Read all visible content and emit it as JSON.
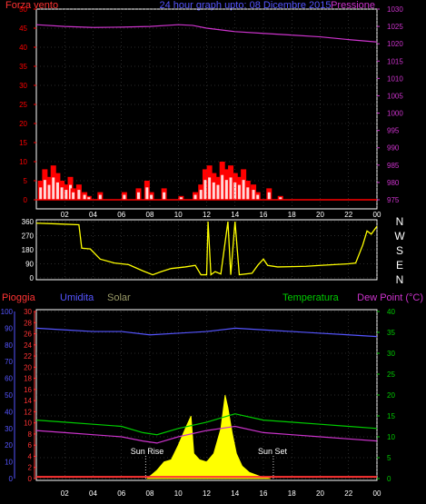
{
  "header": {
    "left_title": "Forza vento",
    "center_title": "24 hour graph upto: 08 Dicembre 2015",
    "right_title": "Pressione"
  },
  "bottom_header": {
    "rain": "Pioggia",
    "humidity": "Umidita",
    "solar": "Solar",
    "temperature": "Temperatura",
    "dewpoint": "Dew Point (°C)"
  },
  "direction_labels": [
    "N",
    "W",
    "S",
    "E",
    "N"
  ],
  "colors": {
    "wind": "#ff0000",
    "wind_gust": "#ffffff",
    "wind_avg": "#00ff00",
    "pressure": "#cc33cc",
    "direction": "#ffff00",
    "rain": "#ff3333",
    "humidity": "#5555ff",
    "solar": "#ffff00",
    "temperature": "#00cc00",
    "dewpoint": "#cc33cc",
    "frame": "#ffffff",
    "grid": "#555555"
  },
  "chart_data": [
    {
      "type": "bar",
      "title": "24 hour graph upto: 08 Dicembre 2015",
      "x_ticks": [
        "02",
        "04",
        "06",
        "08",
        "10",
        "12",
        "14",
        "16",
        "18",
        "20",
        "22",
        "00"
      ],
      "xlim_hours": [
        0,
        24
      ],
      "left_axis": {
        "label": "Forza vento",
        "ylim": [
          0,
          50
        ],
        "ticks": [
          0,
          5,
          10,
          15,
          20,
          25,
          30,
          35,
          40,
          45,
          50
        ]
      },
      "right_axis": {
        "label": "Pressione",
        "ylim": [
          975,
          1030
        ],
        "ticks": [
          975,
          980,
          985,
          990,
          995,
          1000,
          1005,
          1010,
          1015,
          1020,
          1025,
          1030
        ]
      },
      "series": [
        {
          "name": "Forza vento",
          "values_hour_speed": [
            [
              0.3,
              5
            ],
            [
              0.6,
              8
            ],
            [
              0.9,
              6
            ],
            [
              1.2,
              9
            ],
            [
              1.5,
              7
            ],
            [
              1.8,
              5
            ],
            [
              2.1,
              4
            ],
            [
              2.4,
              6
            ],
            [
              2.6,
              3
            ],
            [
              3.0,
              4
            ],
            [
              3.4,
              2
            ],
            [
              3.7,
              1
            ],
            [
              4.5,
              2
            ],
            [
              6.2,
              2
            ],
            [
              7.2,
              3
            ],
            [
              7.8,
              5
            ],
            [
              8.1,
              2
            ],
            [
              9.0,
              3
            ],
            [
              10.2,
              1
            ],
            [
              11.2,
              2
            ],
            [
              11.6,
              4
            ],
            [
              11.9,
              8
            ],
            [
              12.2,
              9
            ],
            [
              12.5,
              7
            ],
            [
              12.8,
              6
            ],
            [
              13.1,
              10
            ],
            [
              13.4,
              8
            ],
            [
              13.7,
              9
            ],
            [
              14.0,
              7
            ],
            [
              14.3,
              6
            ],
            [
              14.6,
              8
            ],
            [
              14.9,
              5
            ],
            [
              15.3,
              4
            ],
            [
              15.6,
              2
            ],
            [
              16.4,
              3
            ],
            [
              17.2,
              1
            ]
          ]
        },
        {
          "name": "Pressione",
          "values_hour_hpa": [
            [
              0,
              1025.5
            ],
            [
              2,
              1025
            ],
            [
              4,
              1024.7
            ],
            [
              6,
              1024.8
            ],
            [
              8,
              1025
            ],
            [
              10,
              1025.5
            ],
            [
              11,
              1025.3
            ],
            [
              12,
              1024.5
            ],
            [
              14,
              1023.5
            ],
            [
              16,
              1023
            ],
            [
              18,
              1022.5
            ],
            [
              20,
              1022
            ],
            [
              22,
              1021.2
            ],
            [
              24,
              1020.5
            ]
          ]
        }
      ]
    },
    {
      "type": "line",
      "x_ticks": [
        "02",
        "04",
        "06",
        "08",
        "10",
        "12",
        "14",
        "16",
        "18",
        "20",
        "22",
        "00"
      ],
      "left_axis": {
        "ylim": [
          0,
          360
        ],
        "ticks": [
          0,
          90,
          180,
          270,
          360
        ]
      },
      "series": [
        {
          "name": "direction",
          "values_hour_deg": [
            [
              0,
              350
            ],
            [
              1.5,
              345
            ],
            [
              3.0,
              340
            ],
            [
              3.2,
              190
            ],
            [
              3.8,
              185
            ],
            [
              4.5,
              120
            ],
            [
              5.5,
              95
            ],
            [
              6.5,
              85
            ],
            [
              7.5,
              45
            ],
            [
              8.2,
              20
            ],
            [
              8.8,
              40
            ],
            [
              9.5,
              60
            ],
            [
              10.5,
              70
            ],
            [
              11.2,
              80
            ],
            [
              11.6,
              20
            ],
            [
              12.0,
              20
            ],
            [
              12.1,
              360
            ],
            [
              12.3,
              20
            ],
            [
              12.6,
              40
            ],
            [
              13.0,
              25
            ],
            [
              13.5,
              360
            ],
            [
              13.7,
              20
            ],
            [
              14.0,
              360
            ],
            [
              14.3,
              20
            ],
            [
              15.2,
              30
            ],
            [
              15.6,
              80
            ],
            [
              16.0,
              120
            ],
            [
              16.3,
              80
            ],
            [
              17.0,
              70
            ],
            [
              18.0,
              72
            ],
            [
              19.0,
              74
            ],
            [
              20.0,
              80
            ],
            [
              21.0,
              85
            ],
            [
              22.0,
              90
            ],
            [
              22.5,
              95
            ],
            [
              23.0,
              210
            ],
            [
              23.3,
              300
            ],
            [
              23.6,
              280
            ],
            [
              24,
              330
            ]
          ]
        }
      ]
    },
    {
      "type": "line",
      "x_ticks": [
        "02",
        "04",
        "06",
        "08",
        "10",
        "12",
        "14",
        "16",
        "18",
        "20",
        "22",
        "00"
      ],
      "annotations": [
        "Sun Rise",
        "Sun Set"
      ],
      "axes": {
        "humidity": {
          "ticks": [
            0,
            10,
            20,
            30,
            40,
            50,
            60,
            70,
            80,
            90,
            100
          ]
        },
        "rain": {
          "ticks": [
            0,
            2,
            4,
            6,
            8,
            10,
            12,
            14,
            16,
            18,
            20,
            22,
            24,
            26,
            28,
            30
          ]
        },
        "temperature": {
          "ticks": [
            0,
            5,
            10,
            15,
            20,
            25,
            30,
            35,
            40
          ]
        }
      },
      "series": [
        {
          "name": "Umidita",
          "values_hour_pct": [
            [
              0,
              90
            ],
            [
              2,
              89
            ],
            [
              4,
              88
            ],
            [
              6,
              88
            ],
            [
              8,
              86
            ],
            [
              10,
              87
            ],
            [
              12,
              88
            ],
            [
              14,
              90
            ],
            [
              16,
              89
            ],
            [
              18,
              88
            ],
            [
              20,
              87
            ],
            [
              22,
              86
            ],
            [
              24,
              85
            ]
          ]
        },
        {
          "name": "Temperatura",
          "values_hour_c": [
            [
              0,
              14
            ],
            [
              2,
              13.5
            ],
            [
              4,
              13
            ],
            [
              6,
              12.5
            ],
            [
              7.5,
              11
            ],
            [
              8.5,
              10.5
            ],
            [
              10,
              12
            ],
            [
              12,
              13.5
            ],
            [
              14,
              15.5
            ],
            [
              16,
              14
            ],
            [
              18,
              13.5
            ],
            [
              20,
              13
            ],
            [
              22,
              12.5
            ],
            [
              24,
              12
            ]
          ]
        },
        {
          "name": "Dew Point (°C)",
          "values_hour_c": [
            [
              0,
              11.5
            ],
            [
              2,
              11
            ],
            [
              4,
              10.5
            ],
            [
              6,
              10
            ],
            [
              7.5,
              9
            ],
            [
              8.5,
              8.5
            ],
            [
              10,
              10
            ],
            [
              12,
              11.5
            ],
            [
              14,
              12.5
            ],
            [
              16,
              11
            ],
            [
              18,
              10.5
            ],
            [
              20,
              10
            ],
            [
              22,
              9.5
            ],
            [
              24,
              9
            ]
          ]
        },
        {
          "name": "Solar",
          "values_hour_w": [
            [
              7.8,
              0
            ],
            [
              8.5,
              20
            ],
            [
              9.0,
              40
            ],
            [
              9.5,
              45
            ],
            [
              10.0,
              80
            ],
            [
              10.5,
              120
            ],
            [
              10.9,
              150
            ],
            [
              11.1,
              60
            ],
            [
              11.5,
              45
            ],
            [
              12.0,
              40
            ],
            [
              12.5,
              60
            ],
            [
              13.0,
              120
            ],
            [
              13.3,
              200
            ],
            [
              13.5,
              170
            ],
            [
              13.8,
              110
            ],
            [
              14.1,
              60
            ],
            [
              14.5,
              30
            ],
            [
              15.0,
              15
            ],
            [
              15.8,
              5
            ],
            [
              16.5,
              0
            ]
          ]
        },
        {
          "name": "Pioggia",
          "values_hour_mm": [
            [
              0,
              0.3
            ],
            [
              24,
              0.3
            ]
          ]
        }
      ],
      "sun_rise_hour": 7.7,
      "sun_set_hour": 16.7
    }
  ]
}
